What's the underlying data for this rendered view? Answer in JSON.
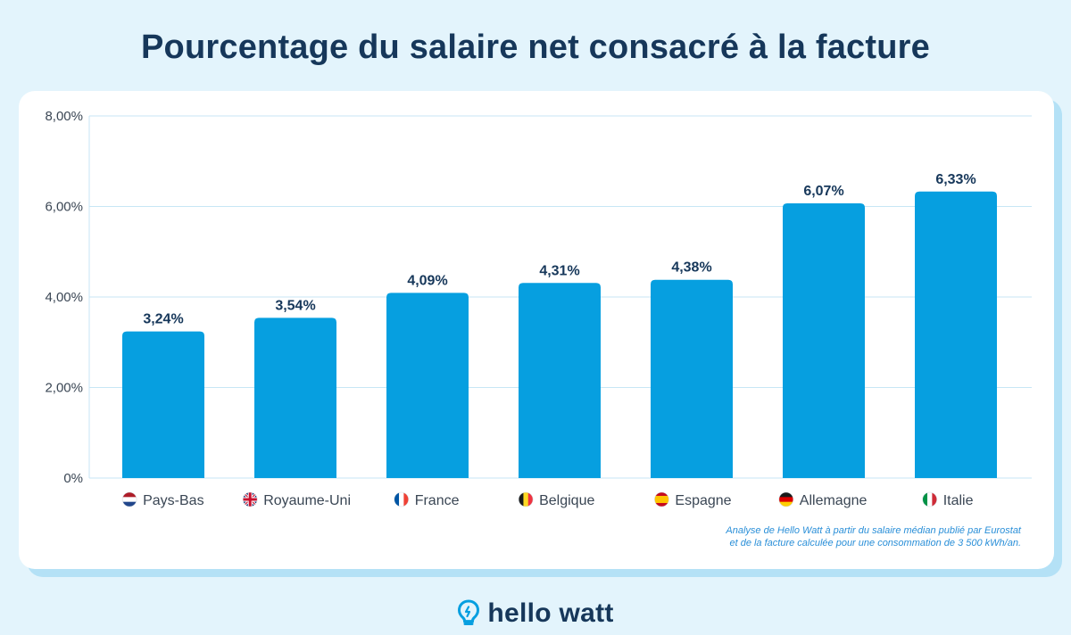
{
  "title": "Pourcentage du salaire net consacré à la facture",
  "chart_data": {
    "type": "bar",
    "categories": [
      "Pays-Bas",
      "Royaume-Uni",
      "France",
      "Belgique",
      "Espagne",
      "Allemagne",
      "Italie"
    ],
    "values": [
      3.24,
      3.54,
      4.09,
      4.31,
      4.38,
      6.07,
      6.33
    ],
    "value_labels": [
      "3,24%",
      "3,54%",
      "4,09%",
      "4,31%",
      "4,38%",
      "6,07%",
      "6,33%"
    ],
    "flag_icons": [
      "flag-netherlands-icon",
      "flag-united-kingdom-icon",
      "flag-france-icon",
      "flag-belgium-icon",
      "flag-spain-icon",
      "flag-germany-icon",
      "flag-italy-icon"
    ],
    "y_ticks": [
      0,
      2,
      4,
      6,
      8
    ],
    "y_tick_labels": [
      "0%",
      "2,00%",
      "4,00%",
      "6,00%",
      "8,00%"
    ],
    "ylim": [
      0,
      8
    ],
    "grid": true,
    "bar_color": "#069fe0",
    "grid_color": "#c7e6f5",
    "xlabel": "",
    "ylabel": ""
  },
  "source_note": {
    "line1": "Analyse de Hello Watt à partir du salaire médian publié par Eurostat",
    "line2": "et de la facture calculée pour une consommation de 3 500 kWh/an."
  },
  "brand": {
    "name": "hello watt",
    "icon": "lightbulb-icon"
  },
  "colors": {
    "background": "#e3f4fc",
    "title": "#16375a",
    "card": "#ffffff",
    "card_shadow": "#b4e1f6",
    "note": "#2a8fd8"
  }
}
